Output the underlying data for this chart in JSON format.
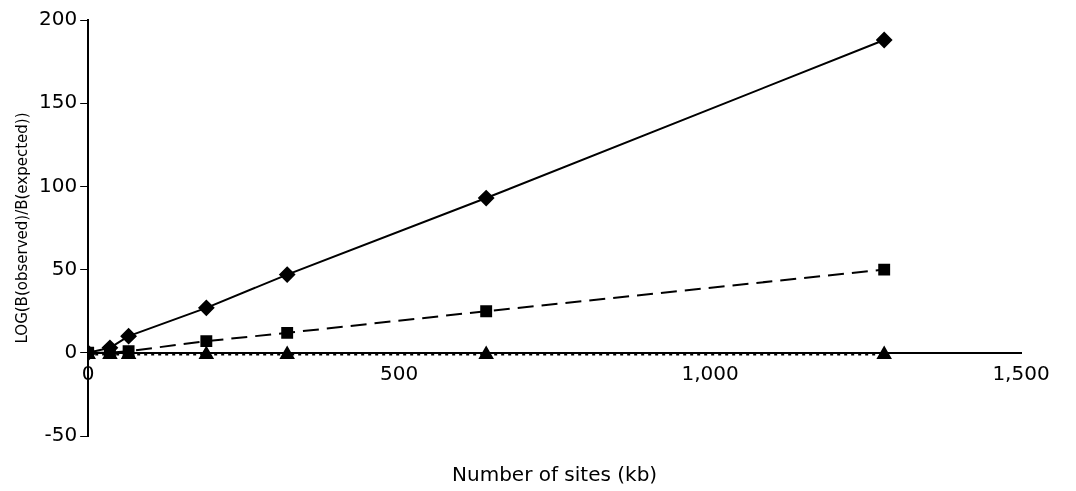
{
  "chart_data": {
    "type": "line",
    "xlabel": "Number of sites (kb)",
    "ylabel": "LOG(B(observed)/B(expected))",
    "x": [
      0,
      35,
      65,
      190,
      320,
      640,
      1280
    ],
    "series": [
      {
        "color": "#000000",
        "marker": "diamond",
        "line_style": "solid",
        "values": [
          0,
          3,
          10,
          27,
          47,
          93,
          188
        ]
      },
      {
        "color": "#000000",
        "marker": "square",
        "line_style": "dashed",
        "values": [
          0,
          0,
          1,
          7,
          12,
          25,
          50
        ]
      },
      {
        "color": "#000000",
        "marker": "triangle",
        "line_style": "dotted",
        "values": [
          -1,
          -1,
          -1,
          -1,
          -1,
          -1,
          -1
        ]
      }
    ],
    "xlim": [
      0,
      1500
    ],
    "xticks": [
      0,
      500,
      {
        "value": 1000,
        "label": "1,000"
      },
      {
        "value": 1500,
        "label": "1,500"
      }
    ],
    "ylim": [
      -50,
      200
    ],
    "yticks": [
      -50,
      0,
      50,
      100,
      150,
      200
    ],
    "grid": false,
    "legend": false
  }
}
